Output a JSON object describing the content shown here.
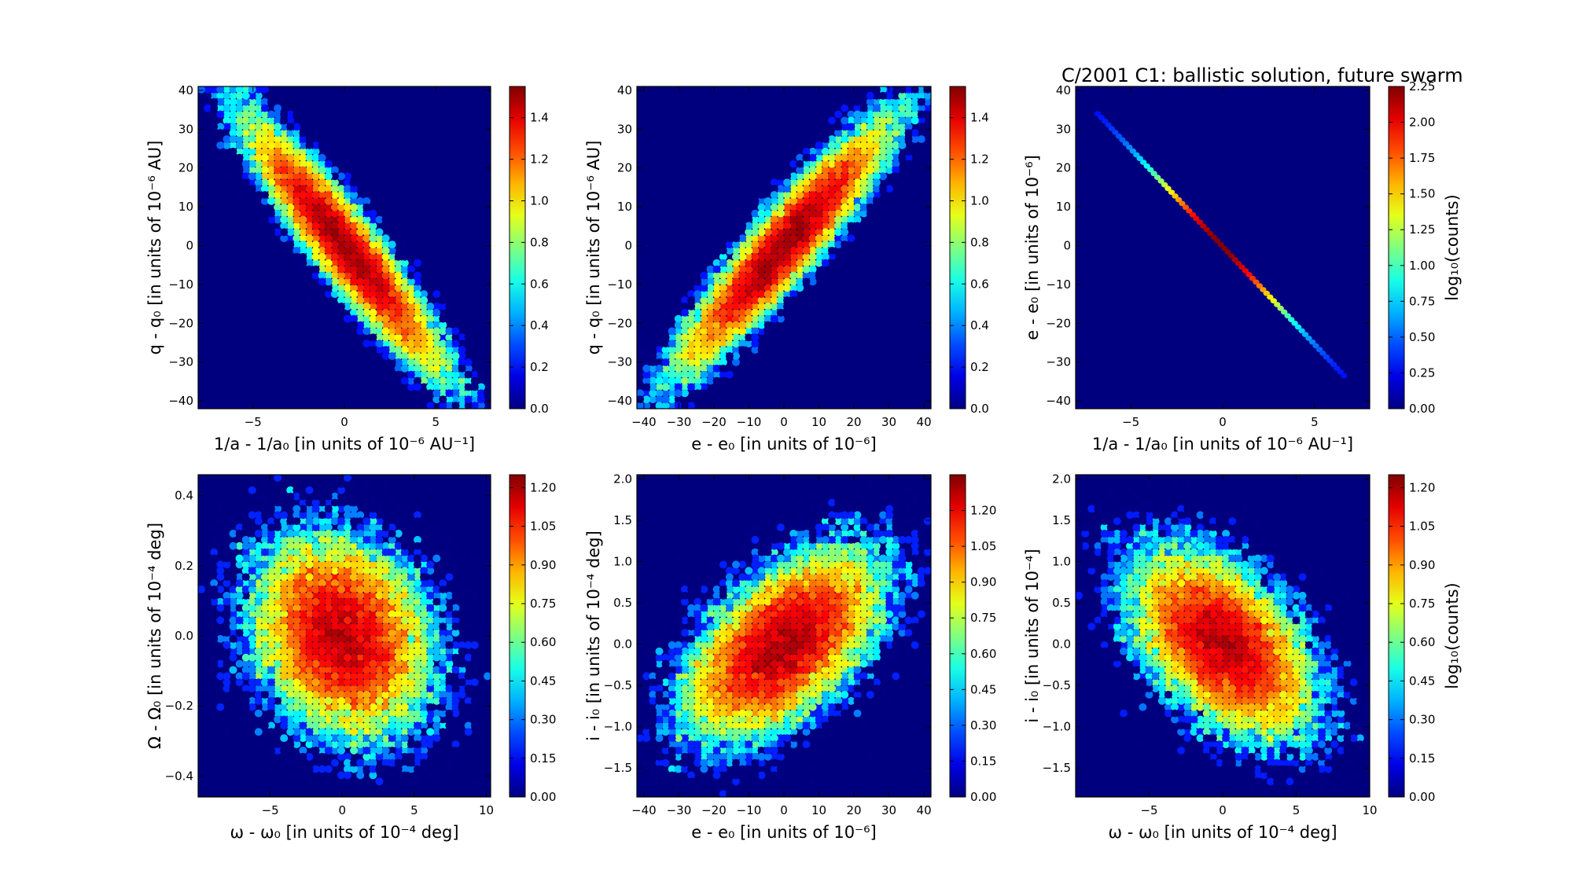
{
  "figure": {
    "suptitle": "C/2001 C1:  ballistic solution, future swarm"
  },
  "chart_data": [
    {
      "type": "heatmap",
      "id": "p1",
      "xlabel": "1/a - 1/a₀ [in units of 10⁻⁶ AU⁻¹]",
      "ylabel": "q - q₀ [in units of 10⁻⁶ AU]",
      "xlim": [
        -8,
        8
      ],
      "ylim": [
        -42,
        41
      ],
      "xticks": [
        -5,
        0,
        5
      ],
      "yticks": [
        -40,
        -30,
        -20,
        -10,
        0,
        10,
        20,
        30,
        40
      ],
      "distribution": {
        "cx": 0,
        "cy": 0,
        "sx": 2.6,
        "sy": 15.5,
        "rho": -0.93,
        "n": 20000
      },
      "colorbar": {
        "range": [
          0,
          1.55
        ],
        "ticks": [
          0.0,
          0.2,
          0.4,
          0.6,
          0.8,
          1.0,
          1.2,
          1.4
        ],
        "label": ""
      }
    },
    {
      "type": "heatmap",
      "id": "p2",
      "xlabel": "e - e₀ [in units of 10⁻⁶]",
      "ylabel": "q - q₀ [in units of 10⁻⁶ AU]",
      "xlim": [
        -42,
        42
      ],
      "ylim": [
        -42,
        41
      ],
      "xticks": [
        -40,
        -30,
        -20,
        -10,
        0,
        10,
        20,
        30,
        40
      ],
      "yticks": [
        -40,
        -30,
        -20,
        -10,
        0,
        10,
        20,
        30,
        40
      ],
      "distribution": {
        "cx": 0,
        "cy": 0,
        "sx": 14.5,
        "sy": 15.5,
        "rho": 0.93,
        "n": 20000
      },
      "colorbar": {
        "range": [
          0,
          1.55
        ],
        "ticks": [
          0.0,
          0.2,
          0.4,
          0.6,
          0.8,
          1.0,
          1.2,
          1.4
        ],
        "label": ""
      }
    },
    {
      "type": "heatmap",
      "id": "p3",
      "xlabel": "1/a - 1/a₀ [in units of 10⁻⁶ AU⁻¹]",
      "ylabel": "e - e₀ [in units of 10⁻⁶]",
      "xlim": [
        -8,
        8
      ],
      "ylim": [
        -42,
        41
      ],
      "xticks": [
        -5,
        0,
        5
      ],
      "yticks": [
        -40,
        -30,
        -20,
        -10,
        0,
        10,
        20,
        30,
        40
      ],
      "line": {
        "x0": -6.8,
        "y0": 34,
        "x1": 6.6,
        "y1": -33.5
      },
      "colorbar": {
        "range": [
          0,
          2.25
        ],
        "ticks": [
          0.0,
          0.25,
          0.5,
          0.75,
          1.0,
          1.25,
          1.5,
          1.75,
          2.0,
          2.25
        ],
        "tick_labels": [
          "0.00",
          "0.25",
          "0.50",
          "0.75",
          "1.00",
          "1.25",
          "1.50",
          "1.75",
          "2.00",
          "2.25"
        ],
        "label": "log₁₀(counts)"
      }
    },
    {
      "type": "heatmap",
      "id": "p4",
      "xlabel": "ω - ω₀ [in units of 10⁻⁴ deg]",
      "ylabel": "Ω - Ω₀ [in units of 10⁻⁴ deg]",
      "xlim": [
        -10,
        10.3
      ],
      "ylim": [
        -0.46,
        0.46
      ],
      "xticks": [
        -5,
        0,
        5,
        10
      ],
      "yticks": [
        -0.4,
        -0.2,
        0.0,
        0.2,
        0.4
      ],
      "distribution": {
        "cx": 0,
        "cy": 0,
        "sx": 3.0,
        "sy": 0.14,
        "rho": -0.2,
        "n": 20000
      },
      "colorbar": {
        "range": [
          0,
          1.25
        ],
        "ticks": [
          0.0,
          0.15,
          0.3,
          0.45,
          0.6,
          0.75,
          0.9,
          1.05,
          1.2
        ],
        "tick_labels": [
          "0.00",
          "0.15",
          "0.30",
          "0.45",
          "0.60",
          "0.75",
          "0.90",
          "1.05",
          "1.20"
        ],
        "label": ""
      }
    },
    {
      "type": "heatmap",
      "id": "p5",
      "xlabel": "e - e₀ [in units of 10⁻⁶]",
      "ylabel": "i - i₀ [in units of 10⁻⁴ deg]",
      "xlim": [
        -42,
        42
      ],
      "ylim": [
        -1.85,
        2.05
      ],
      "xticks": [
        -40,
        -30,
        -20,
        -10,
        0,
        10,
        20,
        30,
        40
      ],
      "yticks": [
        -1.5,
        -1.0,
        -0.5,
        0.0,
        0.5,
        1.0,
        1.5,
        2.0
      ],
      "distribution": {
        "cx": 0,
        "cy": 0,
        "sx": 13.5,
        "sy": 0.55,
        "rho": 0.55,
        "n": 20000
      },
      "colorbar": {
        "range": [
          0,
          1.35
        ],
        "ticks": [
          0.0,
          0.15,
          0.3,
          0.45,
          0.6,
          0.75,
          0.9,
          1.05,
          1.2
        ],
        "tick_labels": [
          "0.00",
          "0.15",
          "0.30",
          "0.45",
          "0.60",
          "0.75",
          "0.90",
          "1.05",
          "1.20"
        ],
        "label": ""
      }
    },
    {
      "type": "heatmap",
      "id": "p6",
      "xlabel": "ω - ω₀ [in units of 10⁻⁴ deg]",
      "ylabel": "i - i₀ [in units of 10⁻⁴]",
      "xlim": [
        -10,
        10
      ],
      "ylim": [
        -1.85,
        2.05
      ],
      "xticks": [
        -5,
        0,
        5,
        10
      ],
      "yticks": [
        -1.5,
        -1.0,
        -0.5,
        0.0,
        0.5,
        1.0,
        1.5,
        2.0
      ],
      "distribution": {
        "cx": 0,
        "cy": 0,
        "sx": 3.0,
        "sy": 0.55,
        "rho": -0.5,
        "n": 20000
      },
      "colorbar": {
        "range": [
          0,
          1.25
        ],
        "ticks": [
          0.0,
          0.15,
          0.3,
          0.45,
          0.6,
          0.75,
          0.9,
          1.05,
          1.2
        ],
        "tick_labels": [
          "0.00",
          "0.15",
          "0.30",
          "0.45",
          "0.60",
          "0.75",
          "0.90",
          "1.05",
          "1.20"
        ],
        "label": "log₁₀(counts)"
      }
    }
  ]
}
